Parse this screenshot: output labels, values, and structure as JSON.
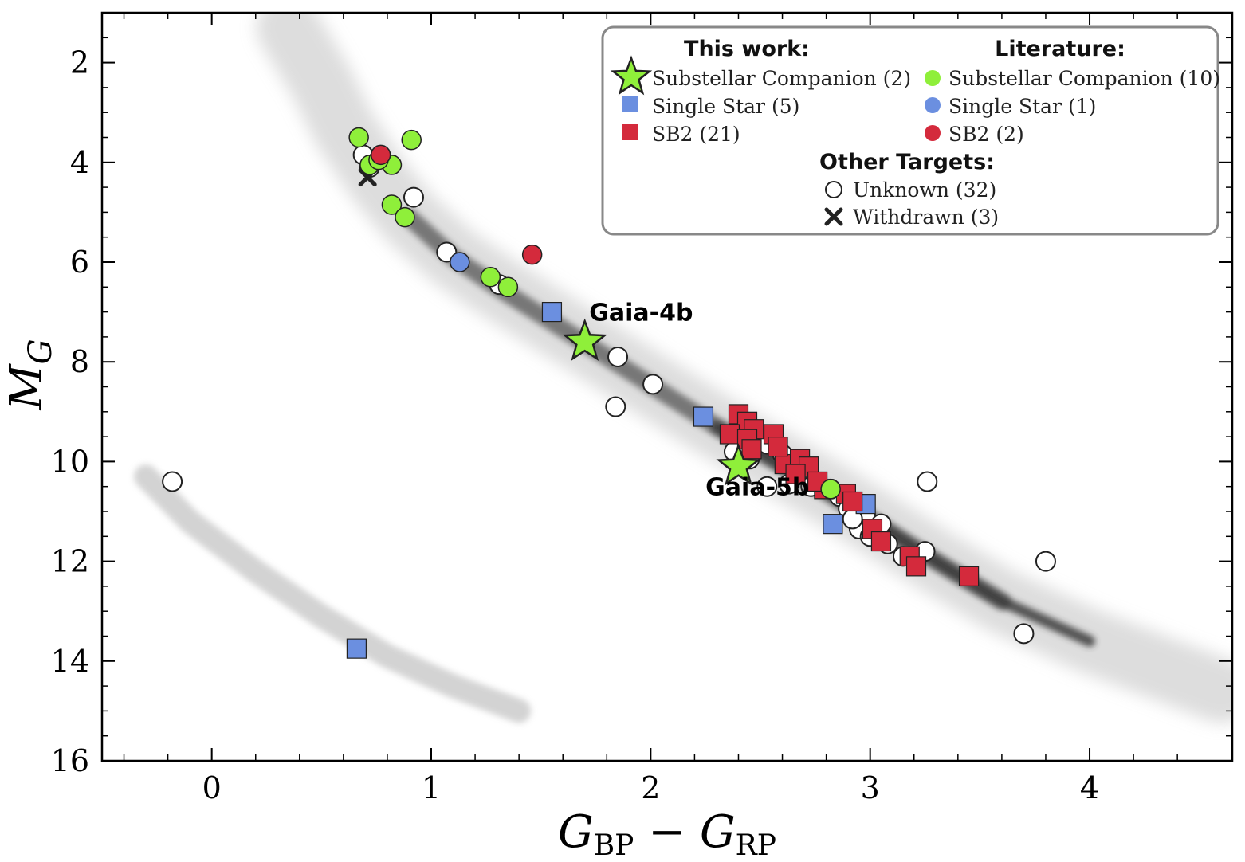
{
  "chart_data": {
    "type": "scatter",
    "xlabel": "G_BP − G_RP",
    "ylabel": "M_G",
    "xlim": [
      -0.5,
      4.65
    ],
    "ylim": [
      16,
      1
    ],
    "y_inverted": true,
    "xticks": [
      0,
      1,
      2,
      3,
      4
    ],
    "yticks": [
      2,
      4,
      6,
      8,
      10,
      12,
      14,
      16
    ],
    "background": "grey density of field stars (main sequence and white dwarf sequence)",
    "legend": {
      "placement": "top-right",
      "headers": {
        "this_work": "This work:",
        "literature": "Literature:",
        "other": "Other Targets:"
      },
      "entries": {
        "tw_substellar": "Substellar Companion (2)",
        "tw_single": "Single Star (5)",
        "tw_sb2": "SB2 (21)",
        "lit_substellar": "Substellar Companion (10)",
        "lit_single": "Single Star (1)",
        "lit_sb2": "SB2 (2)",
        "unknown": "Unknown (32)",
        "withdrawn": "Withdrawn (3)"
      }
    },
    "annotations": [
      {
        "text": "Gaia-4b",
        "x": 1.72,
        "y": 7.0
      },
      {
        "text": "Gaia-5b",
        "x": 2.25,
        "y": 10.5
      }
    ],
    "colors": {
      "green": "#8fef3a",
      "blue": "#6b8fe0",
      "red": "#d42a3c",
      "edge": "#222222"
    },
    "series": [
      {
        "name": "Unknown (32)",
        "marker": "circle-open",
        "points": [
          [
            -0.18,
            10.4
          ],
          [
            0.69,
            3.85
          ],
          [
            0.92,
            4.7
          ],
          [
            1.07,
            5.8
          ],
          [
            1.31,
            6.45
          ],
          [
            1.85,
            7.9
          ],
          [
            1.84,
            8.9
          ],
          [
            2.01,
            8.45
          ],
          [
            2.38,
            9.8
          ],
          [
            2.53,
            9.65
          ],
          [
            2.6,
            9.85
          ],
          [
            2.53,
            10.5
          ],
          [
            2.63,
            10.45
          ],
          [
            2.66,
            10.2
          ],
          [
            2.73,
            10.5
          ],
          [
            2.86,
            10.7
          ],
          [
            2.9,
            10.95
          ],
          [
            2.93,
            10.85
          ],
          [
            2.98,
            11.1
          ],
          [
            3.05,
            11.25
          ],
          [
            3.08,
            11.65
          ],
          [
            3.25,
            11.8
          ],
          [
            3.26,
            10.4
          ],
          [
            3.8,
            12.0
          ],
          [
            3.7,
            13.45
          ],
          [
            2.45,
            9.95
          ],
          [
            2.95,
            11.35
          ],
          [
            3.0,
            11.5
          ],
          [
            2.82,
            10.55
          ],
          [
            3.15,
            11.9
          ],
          [
            2.92,
            11.15
          ],
          [
            0.72,
            4.1
          ]
        ]
      },
      {
        "name": "Withdrawn (3)",
        "marker": "x",
        "points": [
          [
            0.71,
            4.3
          ],
          [
            1.55,
            7.0
          ],
          [
            0.66,
            13.75
          ]
        ]
      },
      {
        "name": "Single Star (5)",
        "marker": "square",
        "color": "#6b8fe0",
        "points": [
          [
            2.24,
            9.1
          ],
          [
            2.83,
            11.25
          ],
          [
            2.98,
            10.85
          ],
          [
            1.55,
            7.0
          ],
          [
            0.66,
            13.75
          ]
        ]
      },
      {
        "name": "SB2 (21)",
        "marker": "square",
        "color": "#d42a3c",
        "points": [
          [
            2.4,
            9.05
          ],
          [
            2.44,
            9.2
          ],
          [
            2.47,
            9.35
          ],
          [
            2.36,
            9.45
          ],
          [
            2.44,
            9.55
          ],
          [
            2.56,
            9.45
          ],
          [
            2.46,
            9.75
          ],
          [
            2.61,
            10.05
          ],
          [
            2.68,
            9.95
          ],
          [
            2.72,
            10.1
          ],
          [
            2.66,
            10.25
          ],
          [
            2.79,
            10.55
          ],
          [
            2.89,
            10.65
          ],
          [
            2.92,
            10.8
          ],
          [
            3.01,
            11.35
          ],
          [
            3.05,
            11.6
          ],
          [
            3.18,
            11.9
          ],
          [
            3.21,
            12.1
          ],
          [
            3.45,
            12.3
          ],
          [
            2.58,
            9.7
          ],
          [
            2.76,
            10.4
          ]
        ]
      },
      {
        "name": "Substellar Companion (2)",
        "marker": "star",
        "color": "#8fef3a",
        "points": [
          [
            1.7,
            7.6
          ],
          [
            2.4,
            10.1
          ]
        ]
      },
      {
        "name": "Substellar Companion (10)",
        "marker": "circle",
        "color": "#8fef3a",
        "points": [
          [
            0.67,
            3.5
          ],
          [
            0.72,
            4.05
          ],
          [
            0.82,
            4.05
          ],
          [
            0.91,
            3.55
          ],
          [
            0.82,
            4.85
          ],
          [
            0.88,
            5.1
          ],
          [
            1.27,
            6.3
          ],
          [
            1.35,
            6.5
          ],
          [
            2.82,
            10.55
          ],
          [
            0.76,
            3.95
          ]
        ]
      },
      {
        "name": "Single Star (1)",
        "marker": "circle",
        "color": "#6b8fe0",
        "points": [
          [
            1.13,
            6.0
          ]
        ]
      },
      {
        "name": "SB2 (2)",
        "marker": "circle",
        "color": "#d42a3c",
        "points": [
          [
            0.77,
            3.85
          ],
          [
            1.46,
            5.85
          ]
        ]
      }
    ]
  }
}
